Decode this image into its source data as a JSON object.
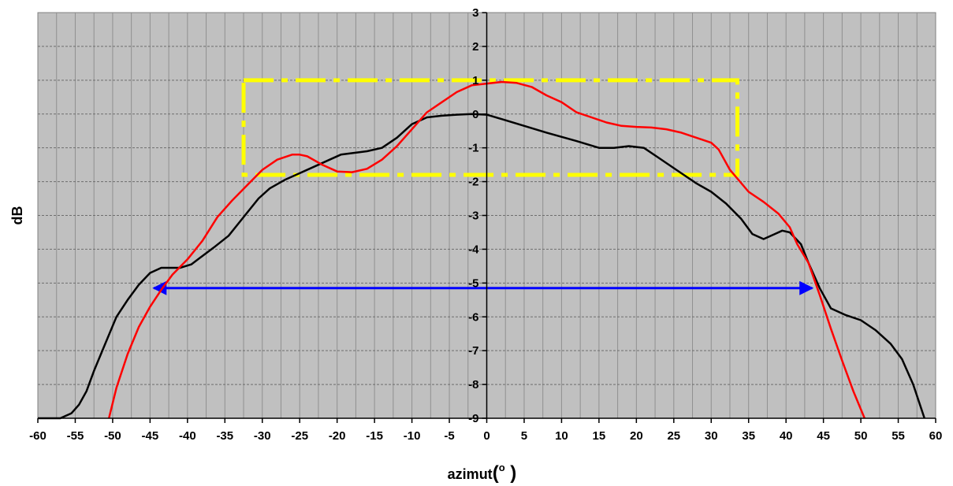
{
  "chart_data": {
    "type": "line",
    "title": "",
    "xlabel": "azimut",
    "xlabel_unit": "o",
    "ylabel": "dB",
    "xlim": [
      -60,
      60
    ],
    "ylim": [
      -9,
      3
    ],
    "x_ticks": [
      -60,
      -55,
      -50,
      -45,
      -40,
      -35,
      -30,
      -25,
      -20,
      -15,
      -10,
      -5,
      0,
      5,
      10,
      15,
      20,
      25,
      30,
      35,
      40,
      45,
      50,
      55,
      60
    ],
    "y_ticks": [
      3,
      2,
      1,
      0,
      -1,
      -2,
      -3,
      -4,
      -5,
      -6,
      -7,
      -8,
      -9
    ],
    "x_tick_labels": [
      "-60",
      "-55",
      "-50",
      "-45",
      "-40",
      "-35",
      "-30",
      "-25",
      "-20",
      "-15",
      "-10",
      "-5",
      "0",
      "5",
      "10",
      "15",
      "20",
      "25",
      "30",
      "35",
      "40",
      "45",
      "50",
      "55",
      "60"
    ],
    "y_tick_labels": [
      "3",
      "2",
      "1",
      "0",
      "-1",
      "-2",
      "-3",
      "-4",
      "-5",
      "-6",
      "-7",
      "-8",
      "-9"
    ],
    "x_minor_step": 2.5,
    "y_minor_step": 1,
    "grid": true,
    "plot_background": "#c0c0c0",
    "series": [
      {
        "color": "#000000",
        "x": [
          -60,
          -57,
          -55.5,
          -54.5,
          -53.5,
          -52.5,
          -51,
          -49.5,
          -48,
          -46.5,
          -45,
          -43.5,
          -42,
          -41,
          -39.5,
          -38,
          -36.5,
          -34.5,
          -32.5,
          -30.5,
          -29,
          -27,
          -25,
          -23,
          -21,
          -19.5,
          -16,
          -14,
          -12,
          -10,
          -8,
          -6,
          -4,
          -2,
          0,
          2,
          5,
          8,
          12,
          15,
          17,
          19,
          21,
          23,
          26,
          28,
          30,
          32,
          34,
          35.5,
          37,
          38.5,
          39.5,
          40.5,
          42,
          43,
          44.5,
          46,
          48,
          50,
          52,
          54,
          55.5,
          57,
          58.5
        ],
        "y": [
          -9,
          -9,
          -8.85,
          -8.6,
          -8.2,
          -7.6,
          -6.8,
          -6,
          -5.5,
          -5.05,
          -4.7,
          -4.55,
          -4.55,
          -4.55,
          -4.45,
          -4.2,
          -3.95,
          -3.6,
          -3.05,
          -2.5,
          -2.2,
          -1.95,
          -1.75,
          -1.55,
          -1.35,
          -1.2,
          -1.1,
          -1,
          -0.7,
          -0.3,
          -0.1,
          -0.05,
          -0.02,
          0,
          -0.02,
          -0.15,
          -0.35,
          -0.55,
          -0.8,
          -1,
          -1,
          -0.95,
          -1,
          -1.3,
          -1.75,
          -2.05,
          -2.3,
          -2.65,
          -3.1,
          -3.55,
          -3.7,
          -3.55,
          -3.45,
          -3.5,
          -3.85,
          -4.4,
          -5.15,
          -5.75,
          -5.95,
          -6.1,
          -6.4,
          -6.8,
          -7.25,
          -8,
          -9
        ]
      },
      {
        "color": "#ff0000",
        "x": [
          -50.5,
          -49.5,
          -48,
          -46.5,
          -45,
          -43.5,
          -42,
          -40,
          -38,
          -36,
          -34,
          -32,
          -30,
          -28,
          -26,
          -25,
          -24,
          -22,
          -20,
          -18,
          -16,
          -14,
          -12,
          -10,
          -8,
          -6,
          -4,
          -2,
          0,
          2,
          4,
          6,
          8,
          10,
          12,
          14,
          16,
          18,
          20,
          22,
          24,
          26,
          28,
          30,
          31,
          32.5,
          35,
          37,
          39,
          40.5,
          41.5,
          43,
          44.5,
          46,
          47.5,
          49,
          50.5
        ],
        "y": [
          -9,
          -8.1,
          -7.1,
          -6.3,
          -5.7,
          -5.2,
          -4.75,
          -4.3,
          -3.75,
          -3.05,
          -2.55,
          -2.1,
          -1.65,
          -1.35,
          -1.2,
          -1.2,
          -1.25,
          -1.5,
          -1.7,
          -1.72,
          -1.62,
          -1.35,
          -0.95,
          -0.45,
          0.05,
          0.35,
          0.65,
          0.85,
          0.9,
          0.95,
          0.92,
          0.8,
          0.55,
          0.35,
          0.05,
          -0.1,
          -0.25,
          -0.35,
          -0.38,
          -0.4,
          -0.45,
          -0.55,
          -0.7,
          -0.85,
          -1.05,
          -1.65,
          -2.3,
          -2.6,
          -2.95,
          -3.35,
          -3.85,
          -4.4,
          -5.35,
          -6.35,
          -7.3,
          -8.2,
          -9
        ]
      }
    ],
    "annotation_rect": {
      "x": [
        -32.5,
        33.5
      ],
      "y": [
        -1.8,
        1
      ],
      "color": "#ffff00",
      "style": "dash-dot"
    },
    "annotation_arrow": {
      "x": [
        -44.5,
        43.5
      ],
      "y": -5.15,
      "color": "#0000ff",
      "style": "double-headed"
    }
  }
}
